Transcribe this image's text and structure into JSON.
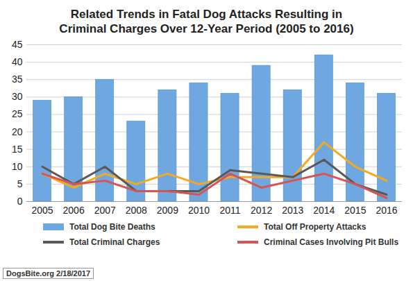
{
  "chart_data": {
    "type": "bar",
    "title": "Related Trends in Fatal Dog Attacks Resulting in Criminal Charges Over 12-Year Period (2005 to 2016)",
    "caption": "DogsBite.org 2/18/2017",
    "categories": [
      "2005",
      "2006",
      "2007",
      "2008",
      "2009",
      "2010",
      "2011",
      "2012",
      "2013",
      "2014",
      "2015",
      "2016"
    ],
    "series": [
      {
        "name": "Total Dog Bite Deaths",
        "type": "bar",
        "color": "#6fa8e0",
        "values": [
          29,
          30,
          35,
          23,
          32,
          34,
          31,
          39,
          32,
          42,
          34,
          31
        ]
      },
      {
        "name": "Total Off Property Attacks",
        "type": "line",
        "color": "#f7a821",
        "values": [
          8,
          4,
          8,
          5,
          8,
          5,
          7,
          7,
          7,
          17,
          10,
          6
        ]
      },
      {
        "name": "Total Criminal Charges",
        "type": "line",
        "color": "#595959",
        "values": [
          10,
          5,
          10,
          3,
          3,
          3,
          9,
          8,
          7,
          12,
          5,
          2
        ]
      },
      {
        "name": "Criminal Cases Involving Pit Bulls",
        "type": "line",
        "color": "#d9534f",
        "values": [
          8,
          5,
          6,
          3,
          3,
          2,
          8,
          4,
          6,
          8,
          5,
          1
        ]
      }
    ],
    "ylim": [
      0,
      45
    ],
    "yticks": [
      0,
      5,
      10,
      15,
      20,
      25,
      30,
      35,
      40,
      45
    ],
    "grid": true,
    "legend": "bottom"
  }
}
